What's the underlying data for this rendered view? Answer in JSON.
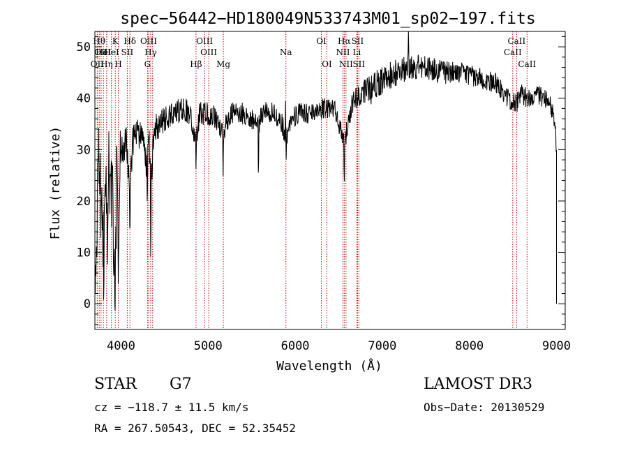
{
  "chart_data": {
    "type": "line",
    "title": "spec−56442−HD180049N533743M01_sp02−197.fits",
    "xlabel": "Wavelength (Å)",
    "ylabel": "Flux (relative)",
    "xlim": [
      3700,
      9100
    ],
    "ylim": [
      -5,
      53
    ],
    "x_ticks": [
      4000,
      5000,
      6000,
      7000,
      8000,
      9000
    ],
    "y_ticks": [
      0,
      10,
      20,
      30,
      40,
      50
    ],
    "grid": false,
    "series": [
      {
        "name": "flux",
        "anchors": [
          [
            3700,
            2
          ],
          [
            3720,
            6
          ],
          [
            3740,
            30
          ],
          [
            3760,
            15
          ],
          [
            3780,
            22
          ],
          [
            3800,
            8
          ],
          [
            3820,
            25
          ],
          [
            3840,
            12
          ],
          [
            3860,
            26
          ],
          [
            3880,
            18
          ],
          [
            3900,
            24
          ],
          [
            3920,
            6
          ],
          [
            3933,
            3
          ],
          [
            3950,
            26
          ],
          [
            3968,
            8
          ],
          [
            3990,
            31
          ],
          [
            4020,
            30
          ],
          [
            4060,
            31
          ],
          [
            4102,
            23
          ],
          [
            4140,
            32
          ],
          [
            4200,
            33
          ],
          [
            4260,
            32
          ],
          [
            4300,
            26
          ],
          [
            4320,
            34
          ],
          [
            4340,
            22
          ],
          [
            4380,
            34
          ],
          [
            4450,
            35
          ],
          [
            4500,
            36
          ],
          [
            4600,
            37
          ],
          [
            4700,
            38
          ],
          [
            4800,
            37
          ],
          [
            4861,
            31
          ],
          [
            4900,
            37
          ],
          [
            5000,
            37
          ],
          [
            5100,
            36
          ],
          [
            5172,
            33
          ],
          [
            5250,
            37
          ],
          [
            5400,
            37
          ],
          [
            5500,
            36
          ],
          [
            5580,
            35
          ],
          [
            5650,
            38
          ],
          [
            5750,
            37
          ],
          [
            5850,
            35
          ],
          [
            5893,
            32
          ],
          [
            5950,
            36
          ],
          [
            6050,
            37
          ],
          [
            6150,
            37
          ],
          [
            6250,
            38
          ],
          [
            6350,
            38
          ],
          [
            6450,
            38
          ],
          [
            6563,
            31
          ],
          [
            6650,
            39
          ],
          [
            6750,
            41
          ],
          [
            6850,
            42
          ],
          [
            6950,
            43
          ],
          [
            7050,
            44
          ],
          [
            7150,
            45
          ],
          [
            7300,
            46
          ],
          [
            7500,
            46
          ],
          [
            7700,
            45
          ],
          [
            7900,
            45
          ],
          [
            8100,
            44
          ],
          [
            8300,
            43
          ],
          [
            8498,
            39
          ],
          [
            8542,
            39
          ],
          [
            8600,
            41
          ],
          [
            8662,
            40
          ],
          [
            8750,
            41
          ],
          [
            8850,
            40
          ],
          [
            8950,
            38
          ],
          [
            8990,
            33
          ],
          [
            9000,
            30
          ]
        ],
        "noise_amplitude": [
          [
            3700,
            8
          ],
          [
            3950,
            8
          ],
          [
            4000,
            3.5
          ],
          [
            4300,
            3
          ],
          [
            4500,
            2.5
          ],
          [
            5200,
            2.2
          ],
          [
            6500,
            2
          ],
          [
            7000,
            2.8
          ],
          [
            8000,
            2
          ],
          [
            8800,
            2
          ],
          [
            9000,
            2
          ]
        ],
        "dips": [
          [
            3934,
            -2
          ],
          [
            4102,
            10
          ],
          [
            4302,
            12
          ],
          [
            4341,
            14
          ],
          [
            4861,
            8
          ],
          [
            5172,
            7
          ],
          [
            5577,
            14
          ],
          [
            5893,
            8
          ],
          [
            6563,
            7
          ],
          [
            6868,
            5
          ]
        ],
        "spikes": [
          [
            5890,
            13
          ],
          [
            7300,
            7
          ],
          [
            3760,
            13
          ]
        ]
      }
    ],
    "lines": [
      {
        "lambda": 3727,
        "tier": 3,
        "label": "OII"
      },
      {
        "lambda": 3750,
        "tier": 1,
        "label": "Hθ"
      },
      {
        "lambda": 3771,
        "tier": 2,
        "label": "OII"
      },
      {
        "lambda": 3798,
        "tier": 2,
        "label": "HeI"
      },
      {
        "lambda": 3835,
        "tier": 3,
        "label": "Hη"
      },
      {
        "lambda": 3889,
        "tier": 2,
        "label": "HeI"
      },
      {
        "lambda": 3934,
        "tier": 1,
        "label": "K"
      },
      {
        "lambda": 3969,
        "tier": 3,
        "label": "H"
      },
      {
        "lambda": 4072,
        "tier": 2,
        "label": "SII"
      },
      {
        "lambda": 4102,
        "tier": 1,
        "label": "Hδ"
      },
      {
        "lambda": 4304,
        "tier": 3,
        "label": "G"
      },
      {
        "lambda": 4317,
        "tier": 1,
        "label": "OIII"
      },
      {
        "lambda": 4341,
        "tier": 2,
        "label": "Hγ"
      },
      {
        "lambda": 4363,
        "tier": 0,
        "label": ""
      },
      {
        "lambda": 4861,
        "tier": 3,
        "label": "Hβ"
      },
      {
        "lambda": 4959,
        "tier": 1,
        "label": "OIII"
      },
      {
        "lambda": 5007,
        "tier": 2,
        "label": "OIII"
      },
      {
        "lambda": 5175,
        "tier": 3,
        "label": "Mg"
      },
      {
        "lambda": 5893,
        "tier": 2,
        "label": "Na"
      },
      {
        "lambda": 6300,
        "tier": 1,
        "label": "OI"
      },
      {
        "lambda": 6364,
        "tier": 3,
        "label": "OI"
      },
      {
        "lambda": 6548,
        "tier": 2,
        "label": "NII"
      },
      {
        "lambda": 6563,
        "tier": 1,
        "label": "Hα"
      },
      {
        "lambda": 6583,
        "tier": 3,
        "label": "NII"
      },
      {
        "lambda": 6707,
        "tier": 2,
        "label": "Li"
      },
      {
        "lambda": 6716,
        "tier": 1,
        "label": "SII"
      },
      {
        "lambda": 6731,
        "tier": 3,
        "label": "SII"
      },
      {
        "lambda": 8498,
        "tier": 2,
        "label": "CaII"
      },
      {
        "lambda": 8542,
        "tier": 1,
        "label": "CaII"
      },
      {
        "lambda": 8662,
        "tier": 3,
        "label": "CaII"
      }
    ]
  },
  "info": {
    "class": "STAR",
    "subclass": "G7",
    "survey": "LAMOST DR3",
    "redshift": "cz = −118.7 ± 11.5 km/s",
    "obs_date": "Obs−Date: 20130529",
    "coords": "RA = 267.50543, DEC =  52.35452"
  },
  "colors": {
    "spectrum": "#000000",
    "lines": "#cc0000",
    "axes": "#000000"
  }
}
